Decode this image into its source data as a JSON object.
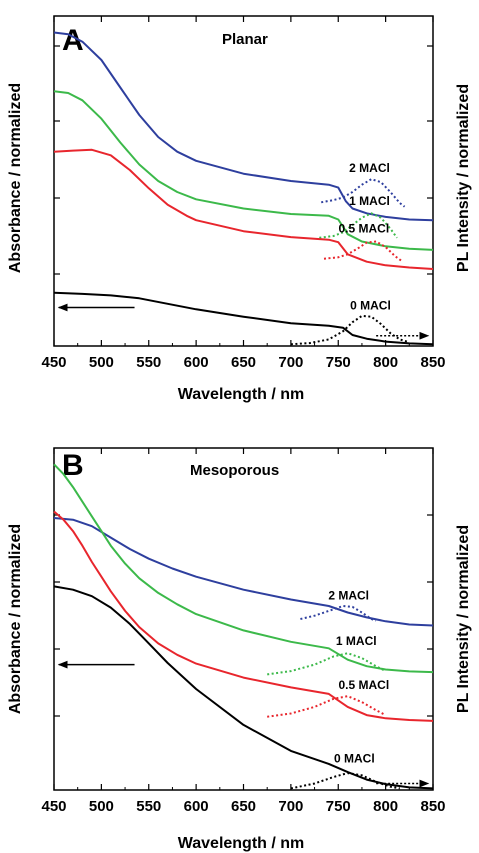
{
  "chart_data": [
    {
      "type": "line",
      "panel": "A",
      "title": "Planar",
      "xlabel": "Wavelength / nm",
      "ylabel_left": "Absorbance / normalized",
      "ylabel_right": "PL Intensity / normalized",
      "xlim": [
        450,
        850
      ],
      "x_ticks": [
        "450",
        "500",
        "550",
        "600",
        "650",
        "700",
        "750",
        "800",
        "850"
      ],
      "series": [
        {
          "name": "2 MACl",
          "color": "#2e3f9e",
          "absorbance": [
            [
              450,
              8.55
            ],
            [
              465,
              8.5
            ],
            [
              480,
              8.3
            ],
            [
              500,
              7.8
            ],
            [
              520,
              7.05
            ],
            [
              540,
              6.3
            ],
            [
              560,
              5.7
            ],
            [
              580,
              5.3
            ],
            [
              600,
              5.05
            ],
            [
              650,
              4.7
            ],
            [
              700,
              4.5
            ],
            [
              740,
              4.4
            ],
            [
              750,
              4.32
            ],
            [
              758,
              3.95
            ],
            [
              765,
              3.75
            ],
            [
              780,
              3.62
            ],
            [
              800,
              3.52
            ],
            [
              825,
              3.45
            ],
            [
              850,
              3.43
            ]
          ],
          "pl": [
            [
              732,
              3.92
            ],
            [
              745,
              3.98
            ],
            [
              755,
              4.05
            ],
            [
              765,
              4.2
            ],
            [
              775,
              4.4
            ],
            [
              785,
              4.55
            ],
            [
              795,
              4.47
            ],
            [
              805,
              4.2
            ],
            [
              815,
              3.9
            ],
            [
              820,
              3.8
            ]
          ]
        },
        {
          "name": "1 MACl",
          "color": "#3cb94a",
          "absorbance": [
            [
              450,
              6.95
            ],
            [
              465,
              6.9
            ],
            [
              480,
              6.7
            ],
            [
              500,
              6.2
            ],
            [
              520,
              5.55
            ],
            [
              540,
              4.95
            ],
            [
              560,
              4.5
            ],
            [
              580,
              4.2
            ],
            [
              600,
              4.0
            ],
            [
              650,
              3.75
            ],
            [
              700,
              3.6
            ],
            [
              740,
              3.55
            ],
            [
              750,
              3.45
            ],
            [
              760,
              3.05
            ],
            [
              775,
              2.85
            ],
            [
              800,
              2.72
            ],
            [
              825,
              2.65
            ],
            [
              850,
              2.62
            ]
          ],
          "pl": [
            [
              730,
              2.95
            ],
            [
              745,
              3.0
            ],
            [
              755,
              3.1
            ],
            [
              765,
              3.3
            ],
            [
              775,
              3.5
            ],
            [
              785,
              3.62
            ],
            [
              795,
              3.5
            ],
            [
              805,
              3.2
            ],
            [
              812,
              2.95
            ]
          ]
        },
        {
          "name": "0.5 MACl",
          "color": "#e8262d",
          "absorbance": [
            [
              450,
              5.3
            ],
            [
              470,
              5.33
            ],
            [
              490,
              5.35
            ],
            [
              510,
              5.2
            ],
            [
              530,
              4.8
            ],
            [
              550,
              4.3
            ],
            [
              570,
              3.85
            ],
            [
              590,
              3.55
            ],
            [
              600,
              3.43
            ],
            [
              650,
              3.13
            ],
            [
              700,
              2.97
            ],
            [
              740,
              2.9
            ],
            [
              750,
              2.83
            ],
            [
              760,
              2.5
            ],
            [
              780,
              2.3
            ],
            [
              800,
              2.2
            ],
            [
              825,
              2.14
            ],
            [
              850,
              2.1
            ]
          ],
          "pl": [
            [
              735,
              2.38
            ],
            [
              750,
              2.42
            ],
            [
              760,
              2.5
            ],
            [
              770,
              2.65
            ],
            [
              780,
              2.82
            ],
            [
              790,
              2.85
            ],
            [
              800,
              2.7
            ],
            [
              810,
              2.45
            ],
            [
              818,
              2.3
            ]
          ]
        },
        {
          "name": "0 MACl",
          "color": "#000000",
          "absorbance": [
            [
              450,
              1.45
            ],
            [
              480,
              1.42
            ],
            [
              510,
              1.38
            ],
            [
              540,
              1.3
            ],
            [
              570,
              1.15
            ],
            [
              600,
              1.0
            ],
            [
              650,
              0.8
            ],
            [
              700,
              0.62
            ],
            [
              740,
              0.55
            ],
            [
              755,
              0.5
            ],
            [
              765,
              0.3
            ],
            [
              780,
              0.2
            ],
            [
              800,
              0.12
            ],
            [
              825,
              0.07
            ],
            [
              850,
              0.05
            ]
          ],
          "pl": [
            [
              700,
              0.05
            ],
            [
              720,
              0.08
            ],
            [
              740,
              0.18
            ],
            [
              755,
              0.4
            ],
            [
              765,
              0.65
            ],
            [
              775,
              0.82
            ],
            [
              785,
              0.8
            ],
            [
              795,
              0.6
            ],
            [
              805,
              0.35
            ],
            [
              815,
              0.18
            ],
            [
              825,
              0.1
            ]
          ]
        }
      ],
      "arrows": [
        {
          "direction": "left",
          "series": "absorbance",
          "from": 535,
          "to": 455,
          "y": 1.05,
          "style": "solid"
        },
        {
          "direction": "right",
          "series": "pl",
          "from": 790,
          "to": 845,
          "y": 0.28,
          "style": "dotted"
        }
      ]
    },
    {
      "type": "line",
      "panel": "B",
      "title": "Mesoporous",
      "xlabel": "Wavelength / nm",
      "ylabel_left": "Absorbance / normalized",
      "ylabel_right": "PL Intensity / normalized",
      "xlim": [
        450,
        850
      ],
      "x_ticks": [
        "450",
        "500",
        "550",
        "600",
        "650",
        "700",
        "750",
        "800",
        "850"
      ],
      "series": [
        {
          "name": "2 MACl",
          "color": "#2e3f9e",
          "absorbance": [
            [
              450,
              8.35
            ],
            [
              470,
              8.3
            ],
            [
              490,
              8.1
            ],
            [
              510,
              7.75
            ],
            [
              530,
              7.4
            ],
            [
              550,
              7.1
            ],
            [
              575,
              6.8
            ],
            [
              600,
              6.55
            ],
            [
              650,
              6.15
            ],
            [
              700,
              5.85
            ],
            [
              740,
              5.65
            ],
            [
              760,
              5.45
            ],
            [
              780,
              5.3
            ],
            [
              800,
              5.18
            ],
            [
              825,
              5.08
            ],
            [
              850,
              5.05
            ]
          ],
          "pl": [
            [
              710,
              5.25
            ],
            [
              725,
              5.35
            ],
            [
              740,
              5.5
            ],
            [
              755,
              5.65
            ],
            [
              765,
              5.62
            ],
            [
              775,
              5.45
            ],
            [
              785,
              5.25
            ],
            [
              790,
              5.2
            ]
          ]
        },
        {
          "name": "1 MACl",
          "color": "#3cb94a",
          "absorbance": [
            [
              450,
              10.0
            ],
            [
              460,
              9.7
            ],
            [
              470,
              9.3
            ],
            [
              480,
              8.85
            ],
            [
              490,
              8.4
            ],
            [
              500,
              7.95
            ],
            [
              510,
              7.5
            ],
            [
              525,
              6.95
            ],
            [
              540,
              6.5
            ],
            [
              560,
              6.05
            ],
            [
              580,
              5.7
            ],
            [
              600,
              5.4
            ],
            [
              650,
              4.9
            ],
            [
              700,
              4.55
            ],
            [
              740,
              4.35
            ],
            [
              760,
              4.0
            ],
            [
              780,
              3.8
            ],
            [
              800,
              3.7
            ],
            [
              825,
              3.64
            ],
            [
              850,
              3.62
            ]
          ],
          "pl": [
            [
              675,
              3.55
            ],
            [
              700,
              3.65
            ],
            [
              725,
              3.85
            ],
            [
              745,
              4.1
            ],
            [
              760,
              4.2
            ],
            [
              775,
              4.05
            ],
            [
              790,
              3.8
            ],
            [
              800,
              3.65
            ]
          ]
        },
        {
          "name": "0.5 MACl",
          "color": "#e8262d",
          "absorbance": [
            [
              450,
              8.55
            ],
            [
              460,
              8.3
            ],
            [
              470,
              7.95
            ],
            [
              480,
              7.5
            ],
            [
              490,
              7.0
            ],
            [
              500,
              6.55
            ],
            [
              510,
              6.1
            ],
            [
              525,
              5.5
            ],
            [
              540,
              5.0
            ],
            [
              560,
              4.5
            ],
            [
              580,
              4.15
            ],
            [
              600,
              3.88
            ],
            [
              650,
              3.45
            ],
            [
              700,
              3.15
            ],
            [
              740,
              2.95
            ],
            [
              760,
              2.55
            ],
            [
              780,
              2.3
            ],
            [
              800,
              2.2
            ],
            [
              825,
              2.15
            ],
            [
              850,
              2.12
            ]
          ],
          "pl": [
            [
              675,
              2.25
            ],
            [
              700,
              2.35
            ],
            [
              725,
              2.55
            ],
            [
              745,
              2.8
            ],
            [
              760,
              2.88
            ],
            [
              775,
              2.7
            ],
            [
              790,
              2.45
            ],
            [
              800,
              2.3
            ]
          ]
        },
        {
          "name": "0 MACl",
          "color": "#000000",
          "absorbance": [
            [
              450,
              6.25
            ],
            [
              470,
              6.15
            ],
            [
              490,
              5.95
            ],
            [
              510,
              5.6
            ],
            [
              530,
              5.1
            ],
            [
              550,
              4.5
            ],
            [
              570,
              3.9
            ],
            [
              600,
              3.1
            ],
            [
              650,
              2.0
            ],
            [
              700,
              1.2
            ],
            [
              740,
              0.8
            ],
            [
              760,
              0.55
            ],
            [
              780,
              0.32
            ],
            [
              800,
              0.18
            ],
            [
              825,
              0.08
            ],
            [
              850,
              0.05
            ]
          ],
          "pl": [
            [
              700,
              0.05
            ],
            [
              725,
              0.2
            ],
            [
              745,
              0.4
            ],
            [
              760,
              0.52
            ],
            [
              775,
              0.45
            ],
            [
              790,
              0.25
            ],
            [
              805,
              0.1
            ],
            [
              815,
              0.05
            ]
          ]
        }
      ],
      "arrows": [
        {
          "direction": "left",
          "series": "absorbance",
          "from": 535,
          "to": 455,
          "y": 3.85,
          "style": "solid"
        },
        {
          "direction": "right",
          "series": "pl",
          "from": 790,
          "to": 845,
          "y": 0.2,
          "style": "dotted"
        }
      ]
    }
  ]
}
